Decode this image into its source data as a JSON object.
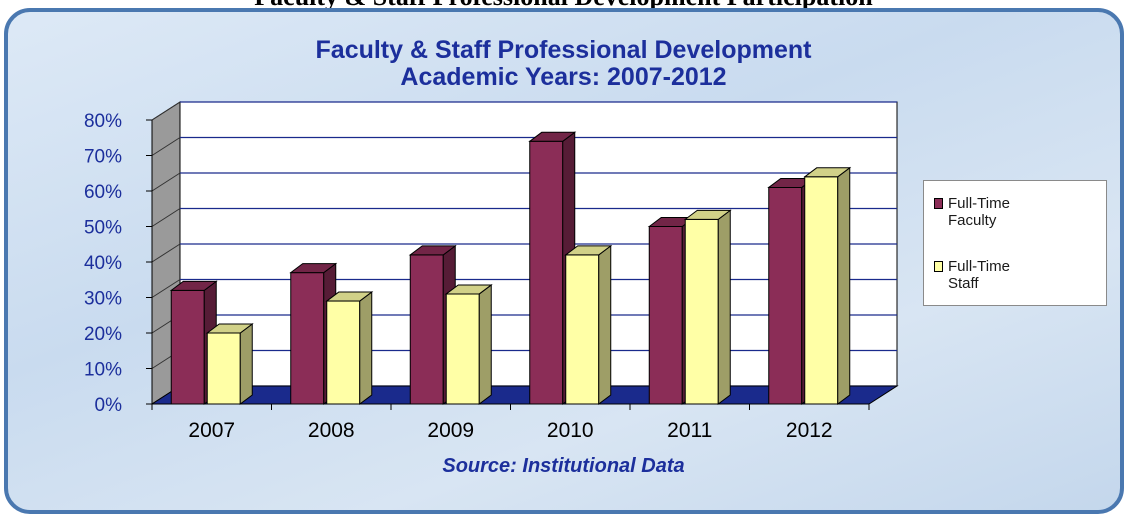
{
  "page": {
    "heading": "Faculty & Staff Professional Development Participation"
  },
  "chart_data": {
    "type": "bar",
    "title": "Faculty & Staff Professional Development",
    "subtitle": "Academic Years: 2007-2012",
    "categories": [
      "2007",
      "2008",
      "2009",
      "2010",
      "2011",
      "2012"
    ],
    "series": [
      {
        "name": "Full-Time Faculty",
        "name_lines": [
          "Full-Time",
          "Faculty"
        ],
        "values": [
          32,
          37,
          42,
          74,
          50,
          61
        ],
        "color": "#8b2d57"
      },
      {
        "name": "Full-Time Staff",
        "name_lines": [
          "Full-Time",
          "Staff"
        ],
        "values": [
          20,
          29,
          31,
          42,
          52,
          64
        ],
        "color": "#ffffa6"
      }
    ],
    "yticks": [
      "0%",
      "10%",
      "20%",
      "30%",
      "40%",
      "50%",
      "60%",
      "70%",
      "80%"
    ],
    "ylim": [
      0,
      80
    ],
    "grid": true,
    "legend_position": "right",
    "source": "Source: Institutional Data",
    "colors": {
      "title": "#1c2f9c",
      "axis_text": "#1c2f9c",
      "floor": "#1a2a8c",
      "wall": "#9a9a9a",
      "frame": "#4a78b0"
    }
  }
}
